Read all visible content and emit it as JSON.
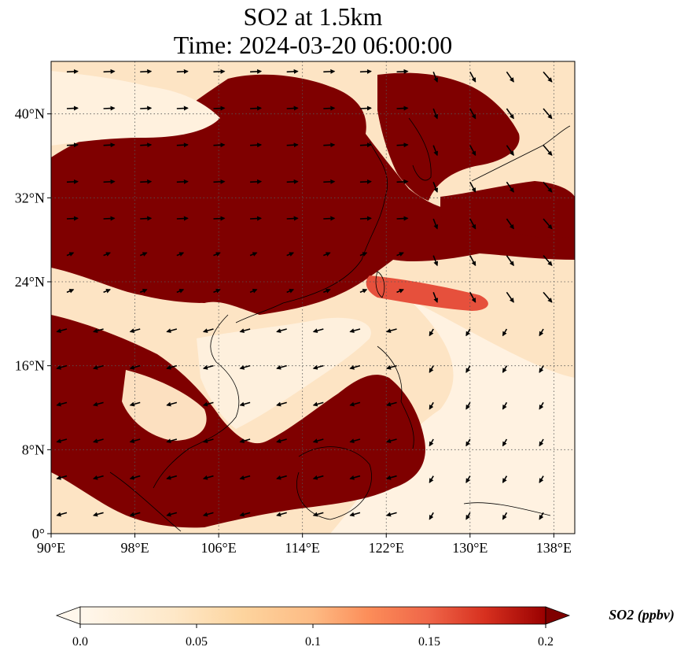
{
  "title": {
    "line1": "SO2 at 1.5km",
    "line2": "Time: 2024-03-20 06:00:00"
  },
  "map": {
    "projection": "PlateCarree",
    "lon_range": [
      90,
      140
    ],
    "lat_range": [
      0,
      45
    ],
    "gridlines": "dotted",
    "lon_ticks": [
      {
        "value": 90,
        "label": "90°E"
      },
      {
        "value": 98,
        "label": "98°E"
      },
      {
        "value": 106,
        "label": "106°E"
      },
      {
        "value": 114,
        "label": "114°E"
      },
      {
        "value": 122,
        "label": "122°E"
      },
      {
        "value": 130,
        "label": "130°E"
      },
      {
        "value": 138,
        "label": "138°E"
      }
    ],
    "lat_ticks": [
      {
        "value": 0,
        "label": "0°"
      },
      {
        "value": 8,
        "label": "8°N"
      },
      {
        "value": 16,
        "label": "16°N"
      },
      {
        "value": 24,
        "label": "24°N"
      },
      {
        "value": 32,
        "label": "32°N"
      },
      {
        "value": 40,
        "label": "40°N"
      }
    ],
    "field_colors": {
      "low": "#fff5eb",
      "mid": "#fdae6b",
      "high": "#7f0000"
    },
    "wind_vector_color": "#000000"
  },
  "colorbar": {
    "title": "SO2 (ppbv)",
    "range": [
      0,
      0.2
    ],
    "extend": "both",
    "colormap": "OrRd",
    "ticks": [
      {
        "value": 0,
        "label": "0.0"
      },
      {
        "value": 0.05,
        "label": "0.05"
      },
      {
        "value": 0.1,
        "label": "0.1"
      },
      {
        "value": 0.15,
        "label": "0.15"
      },
      {
        "value": 0.2,
        "label": "0.2"
      }
    ]
  }
}
